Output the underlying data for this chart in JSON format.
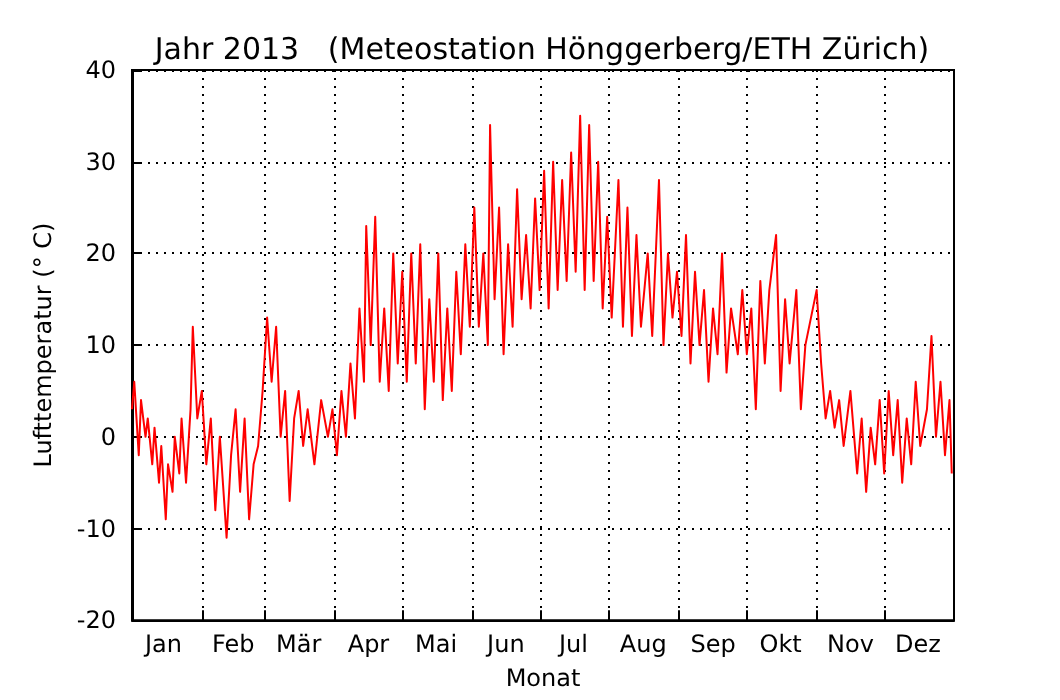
{
  "chart_data": {
    "type": "line",
    "title": "Jahr 2013   (Meteostation Hönggerberg/ETH Zürich)",
    "xlabel": "Monat",
    "ylabel": "Lufttemperatur (° C)",
    "x": [
      "2013-01-01",
      "2013-01-02",
      "2013-01-04",
      "2013-01-05",
      "2013-01-07",
      "2013-01-08",
      "2013-01-10",
      "2013-01-11",
      "2013-01-13",
      "2013-01-14",
      "2013-01-16",
      "2013-01-17",
      "2013-01-19",
      "2013-01-20",
      "2013-01-22",
      "2013-01-23",
      "2013-01-25",
      "2013-01-27",
      "2013-01-28",
      "2013-01-30",
      "2013-02-01",
      "2013-02-03",
      "2013-02-05",
      "2013-02-07",
      "2013-02-09",
      "2013-02-12",
      "2013-02-14",
      "2013-02-16",
      "2013-02-18",
      "2013-02-20",
      "2013-02-22",
      "2013-02-24",
      "2013-02-26",
      "2013-02-28",
      "2013-03-02",
      "2013-03-04",
      "2013-03-06",
      "2013-03-08",
      "2013-03-10",
      "2013-03-12",
      "2013-03-14",
      "2013-03-16",
      "2013-03-18",
      "2013-03-20",
      "2013-03-23",
      "2013-03-26",
      "2013-03-29",
      "2013-03-31",
      "2013-04-02",
      "2013-04-04",
      "2013-04-06",
      "2013-04-08",
      "2013-04-10",
      "2013-04-12",
      "2013-04-14",
      "2013-04-15",
      "2013-04-17",
      "2013-04-19",
      "2013-04-21",
      "2013-04-23",
      "2013-04-25",
      "2013-04-27",
      "2013-04-29",
      "2013-05-01",
      "2013-05-03",
      "2013-05-05",
      "2013-05-07",
      "2013-05-09",
      "2013-05-11",
      "2013-05-13",
      "2013-05-15",
      "2013-05-17",
      "2013-05-19",
      "2013-05-21",
      "2013-05-23",
      "2013-05-25",
      "2013-05-27",
      "2013-05-29",
      "2013-05-31",
      "2013-06-02",
      "2013-06-04",
      "2013-06-06",
      "2013-06-08",
      "2013-06-09",
      "2013-06-11",
      "2013-06-13",
      "2013-06-15",
      "2013-06-17",
      "2013-06-19",
      "2013-06-21",
      "2013-06-23",
      "2013-06-25",
      "2013-06-27",
      "2013-06-29",
      "2013-07-01",
      "2013-07-03",
      "2013-07-05",
      "2013-07-07",
      "2013-07-09",
      "2013-07-11",
      "2013-07-13",
      "2013-07-15",
      "2013-07-17",
      "2013-07-19",
      "2013-07-21",
      "2013-07-23",
      "2013-07-25",
      "2013-07-27",
      "2013-07-29",
      "2013-07-31",
      "2013-08-02",
      "2013-08-05",
      "2013-08-07",
      "2013-08-09",
      "2013-08-11",
      "2013-08-13",
      "2013-08-15",
      "2013-08-18",
      "2013-08-20",
      "2013-08-23",
      "2013-08-25",
      "2013-08-27",
      "2013-08-29",
      "2013-08-31",
      "2013-09-02",
      "2013-09-04",
      "2013-09-06",
      "2013-09-08",
      "2013-09-10",
      "2013-09-12",
      "2013-09-14",
      "2013-09-16",
      "2013-09-18",
      "2013-09-20",
      "2013-09-22",
      "2013-09-24",
      "2013-09-27",
      "2013-09-29",
      "2013-10-01",
      "2013-10-03",
      "2013-10-05",
      "2013-10-07",
      "2013-10-09",
      "2013-10-11",
      "2013-10-14",
      "2013-10-16",
      "2013-10-18",
      "2013-10-20",
      "2013-10-23",
      "2013-10-25",
      "2013-10-27",
      "2013-11-01",
      "2013-11-03",
      "2013-11-05",
      "2013-11-07",
      "2013-11-09",
      "2013-11-11",
      "2013-11-13",
      "2013-11-16",
      "2013-11-19",
      "2013-11-21",
      "2013-11-23",
      "2013-11-25",
      "2013-11-27",
      "2013-11-29",
      "2013-12-01",
      "2013-12-03",
      "2013-12-05",
      "2013-12-07",
      "2013-12-09",
      "2013-12-11",
      "2013-12-13",
      "2013-12-15",
      "2013-12-17",
      "2013-12-20",
      "2013-12-22",
      "2013-12-24",
      "2013-12-26",
      "2013-12-28",
      "2013-12-30",
      "2013-12-31"
    ],
    "series": [
      {
        "color": "#ff0000",
        "values": [
          3,
          6,
          -2,
          4,
          0,
          2,
          -3,
          1,
          -5,
          -1,
          -9,
          -3,
          -6,
          0,
          -4,
          2,
          -5,
          3,
          12,
          2,
          5,
          -3,
          2,
          -8,
          0,
          -11,
          -2,
          3,
          -6,
          2,
          -9,
          -3,
          -1,
          5,
          13,
          6,
          12,
          0,
          5,
          -7,
          2,
          5,
          -1,
          3,
          -3,
          4,
          0,
          3,
          -2,
          5,
          0,
          8,
          2,
          14,
          6,
          23,
          10,
          24,
          6,
          14,
          5,
          20,
          8,
          18,
          6,
          20,
          8,
          21,
          3,
          15,
          6,
          20,
          4,
          14,
          5,
          18,
          9,
          21,
          12,
          25,
          12,
          20,
          10,
          34,
          15,
          25,
          9,
          21,
          12,
          27,
          15,
          22,
          14,
          26,
          16,
          29,
          14,
          30,
          16,
          28,
          17,
          31,
          18,
          35,
          16,
          34,
          17,
          30,
          14,
          24,
          13,
          28,
          12,
          25,
          11,
          22,
          12,
          20,
          11,
          28,
          10,
          20,
          13,
          18,
          11,
          22,
          8,
          18,
          10,
          16,
          6,
          14,
          9,
          20,
          7,
          14,
          9,
          16,
          9,
          14,
          3,
          17,
          8,
          16,
          22,
          5,
          15,
          8,
          16,
          3,
          10,
          16,
          8,
          2,
          5,
          1,
          4,
          -1,
          5,
          -4,
          2,
          -6,
          1,
          -3,
          4,
          -4,
          5,
          -2,
          4,
          -5,
          2,
          -3,
          6,
          -1,
          3,
          11,
          0,
          6,
          -2,
          4,
          -4
        ]
      }
    ],
    "xlim": [
      "2013-01-01",
      "2014-01-01"
    ],
    "xticks": [
      {
        "value": "2013-01-15",
        "label": "Jan"
      },
      {
        "value": "2013-02-01",
        "label": null
      },
      {
        "value": "2013-02-15",
        "label": "Feb"
      },
      {
        "value": "2013-03-01",
        "label": null
      },
      {
        "value": "2013-03-16",
        "label": "Mär"
      },
      {
        "value": "2013-04-01",
        "label": null
      },
      {
        "value": "2013-04-16",
        "label": "Apr"
      },
      {
        "value": "2013-05-01",
        "label": null
      },
      {
        "value": "2013-05-16",
        "label": "Mai"
      },
      {
        "value": "2013-06-01",
        "label": null
      },
      {
        "value": "2013-06-16",
        "label": "Jun"
      },
      {
        "value": "2013-07-01",
        "label": null
      },
      {
        "value": "2013-07-16",
        "label": "Jul"
      },
      {
        "value": "2013-08-01",
        "label": null
      },
      {
        "value": "2013-08-16",
        "label": "Aug"
      },
      {
        "value": "2013-09-01",
        "label": null
      },
      {
        "value": "2013-09-16",
        "label": "Sep"
      },
      {
        "value": "2013-10-01",
        "label": null
      },
      {
        "value": "2013-10-16",
        "label": "Okt"
      },
      {
        "value": "2013-11-01",
        "label": null
      },
      {
        "value": "2013-11-16",
        "label": "Nov"
      },
      {
        "value": "2013-12-01",
        "label": null
      },
      {
        "value": "2013-12-16",
        "label": "Dez"
      }
    ],
    "ylim": [
      -20,
      40
    ],
    "yticks": [
      -20,
      -10,
      0,
      10,
      20,
      30,
      40
    ],
    "grid": true
  }
}
